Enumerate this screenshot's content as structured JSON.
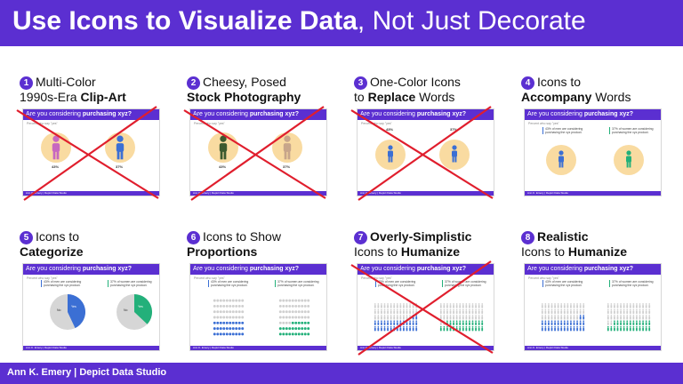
{
  "header": {
    "title_bold": "Use Icons to Visualize Data",
    "title_light": ", Not Just Decorate"
  },
  "footer": {
    "credit": "Ann K. Emery | Depict Data Studio"
  },
  "slide_header": {
    "prefix": "Are you considering ",
    "bold": "purchasing xyz?"
  },
  "slide_subtitle": "Percent who say \"yes\"",
  "slide_footer": "Ann K. Emery | Depict Data Studio",
  "slide_values": {
    "men_pct": "43%",
    "women_pct": "37%",
    "men_text": "43% of men are considering purchasing the xyz product.",
    "women_text": "37% of women are considering purchasing the xyz product.",
    "yes_label": "Yes",
    "no_label": "No",
    "men_no_pct": "57%",
    "women_no_pct": "63%"
  },
  "cards": [
    {
      "num": "1",
      "line1": "Multi-Color",
      "line2_pre": "1990s-Era ",
      "line2_bold": "Clip-Art",
      "crossed": true
    },
    {
      "num": "2",
      "line1": "Cheesy, Posed",
      "line2_pre": "",
      "line2_bold": "Stock Photography",
      "crossed": true
    },
    {
      "num": "3",
      "line1": "One-Color Icons",
      "line2_pre": "to ",
      "line2_bold": "Replace",
      "line2_post": " Words",
      "crossed": true
    },
    {
      "num": "4",
      "line1": "Icons to",
      "line2_pre": "",
      "line2_bold": "Accompany",
      "line2_post": " Words",
      "crossed": false
    },
    {
      "num": "5",
      "line1": "Icons to",
      "line2_pre": "",
      "line2_bold": "Categorize",
      "crossed": false
    },
    {
      "num": "6",
      "line1": "Icons to Show",
      "line2_pre": "",
      "line2_bold": "Proportions",
      "crossed": false
    },
    {
      "num": "7",
      "line1_bold": "Overly-Simplistic",
      "line2_pre": "Icons to ",
      "line2_bold": "Humanize",
      "crossed": true
    },
    {
      "num": "8",
      "line1_bold": "Realistic",
      "line2_pre": "Icons to ",
      "line2_bold": "Humanize",
      "crossed": false
    }
  ],
  "colors": {
    "brand": "#5b2fd1",
    "men": "#3b6fd4",
    "women": "#23b07a",
    "cross": "#e01e2d",
    "icon_bg": "#f9dba1"
  }
}
